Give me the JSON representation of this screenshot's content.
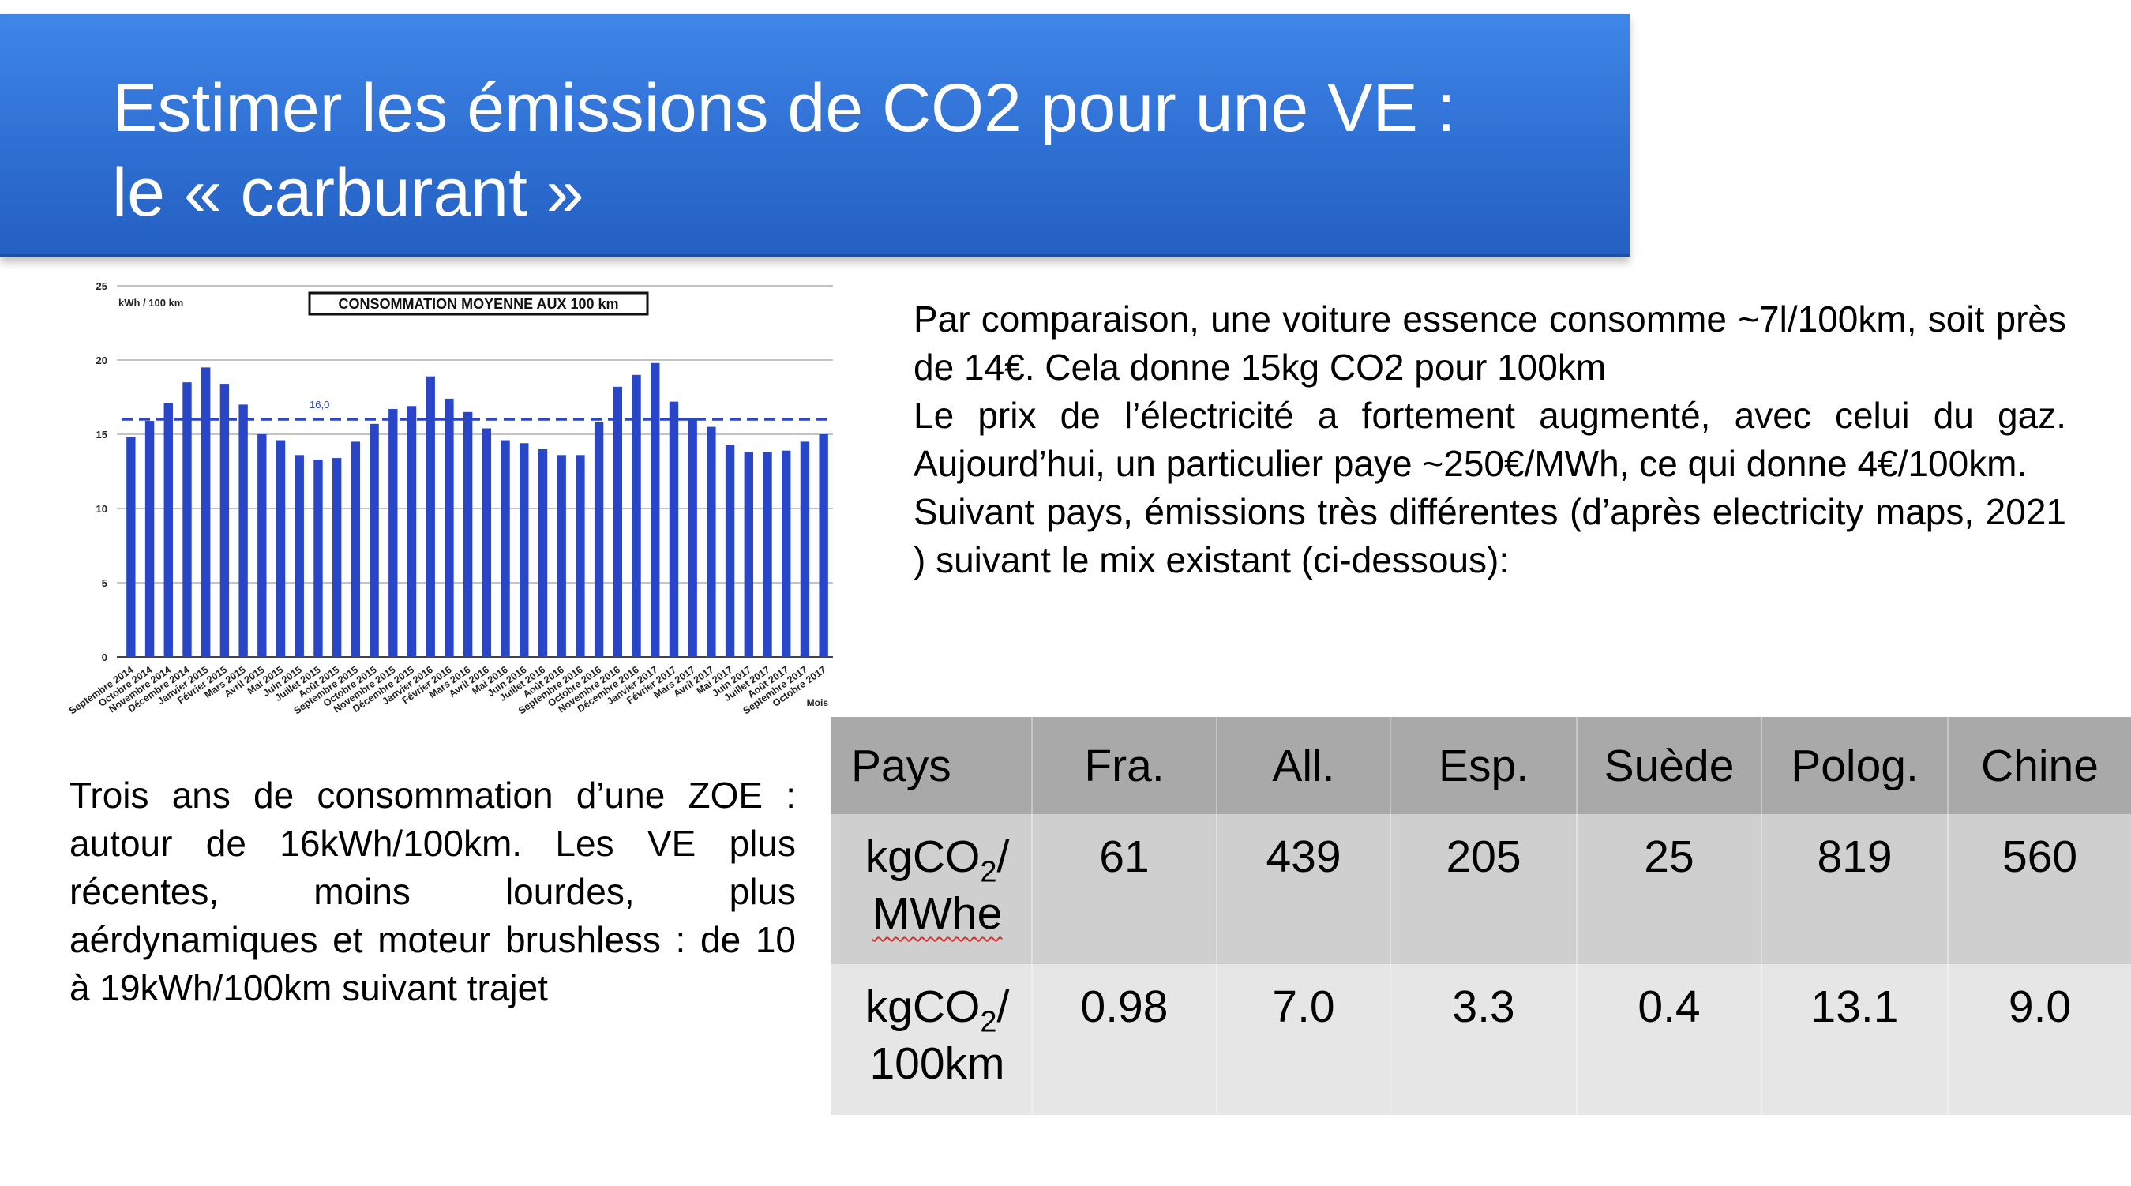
{
  "slide": {
    "title_line1": "Estimer les émissions de CO2 pour une VE :",
    "title_line2": "le « carburant »",
    "right_paragraphs": [
      "Par comparaison, une voiture essence consomme ~7l/100km, soit près de 14€. Cela donne 15kg CO2 pour 100km",
      "Le prix de l’électricité a fortement augmenté, avec celui du gaz. Aujourd’hui, un particulier paye ~250€/MWh, ce qui donne 4€/100km.",
      "Suivant pays, émissions très différentes (d’après electricity maps, 2021 ) suivant le mix existant (ci-dessous):"
    ],
    "left_paragraph": "Trois ans de consommation d’une ZOE : autour de 16kWh/100km. Les VE plus récentes, moins lourdes, plus aérdynamiques et moteur brushless : de 10 à 19kWh/100km suivant trajet"
  },
  "table": {
    "header": [
      "Pays",
      "Fra.",
      "All.",
      "Esp.",
      "Suède",
      "Polog.",
      "Chine"
    ],
    "row1": {
      "label_prefix": "kgCO",
      "label_sub": "2",
      "label_suffix": "/",
      "label_line2": "MWhe",
      "values": [
        "61",
        "439",
        "205",
        "25",
        "819",
        "560"
      ]
    },
    "row2": {
      "label_prefix": "kgCO",
      "label_sub": "2",
      "label_suffix": "/",
      "label_line2": "100km",
      "values": [
        "0.98",
        "7.0",
        "3.3",
        "0.4",
        "13.1",
        "9.0"
      ]
    }
  },
  "chart_data": {
    "type": "bar",
    "title": "CONSOMMATION MOYENNE AUX 100 km",
    "ylabel": "kWh / 100 km",
    "xlabel": "Mois",
    "ylim": [
      0,
      25
    ],
    "yticks": [
      0,
      5,
      10,
      15,
      20,
      25
    ],
    "grid": true,
    "bar_color": "#2a46c8",
    "average_line": {
      "value": 16.0,
      "label": "16,0",
      "color": "#2a46c8",
      "style": "dashed"
    },
    "categories": [
      "Septembre 2014",
      "Octobre 2014",
      "Novembre 2014",
      "Décembre 2014",
      "Janvier 2015",
      "Février 2015",
      "Mars 2015",
      "Avril 2015",
      "Mai 2015",
      "Juin 2015",
      "Juillet 2015",
      "Août 2015",
      "Septembre 2015",
      "Octobre 2015",
      "Novembre 2015",
      "Décembre 2015",
      "Janvier 2016",
      "Février 2016",
      "Mars 2016",
      "Avril 2016",
      "Mai 2016",
      "Juin 2016",
      "Juillet 2016",
      "Août 2016",
      "Septembre 2016",
      "Octobre 2016",
      "Novembre 2016",
      "Décembre 2016",
      "Janvier 2017",
      "Février 2017",
      "Mars 2017",
      "Avril 2017",
      "Mai 2017",
      "Juin 2017",
      "Juillet 2017",
      "Août 2017",
      "Septembre 2017",
      "Octobre 2017"
    ],
    "values": [
      14.8,
      15.9,
      17.1,
      18.5,
      19.5,
      18.4,
      17.0,
      15.0,
      14.6,
      13.6,
      13.3,
      13.4,
      14.5,
      15.7,
      16.7,
      16.9,
      18.9,
      17.4,
      16.5,
      15.4,
      14.6,
      14.4,
      14.0,
      13.6,
      13.6,
      15.8,
      18.2,
      19.0,
      19.8,
      17.2,
      16.1,
      15.5,
      14.3,
      13.8,
      13.8,
      13.9,
      14.5,
      15.0
    ]
  }
}
